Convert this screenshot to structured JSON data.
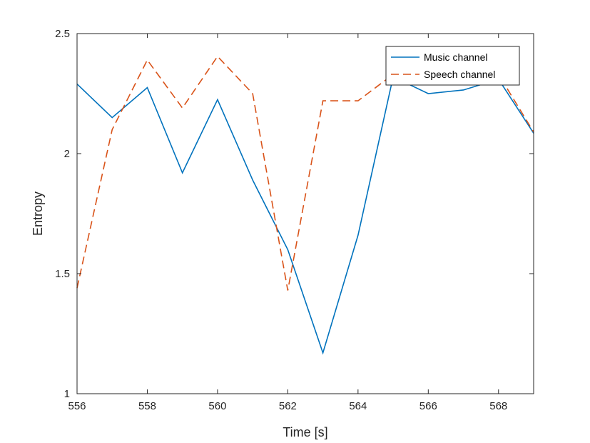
{
  "chart_data": {
    "type": "line",
    "xlabel": "Time [s]",
    "ylabel": "Entropy",
    "xlim": [
      556,
      569
    ],
    "ylim": [
      1,
      2.5
    ],
    "x_ticks": [
      "556",
      "558",
      "560",
      "562",
      "564",
      "566",
      "568"
    ],
    "y_ticks": [
      "1",
      "1.5",
      "2",
      "2.5"
    ],
    "grid": false,
    "legend_position": "top-right",
    "x": [
      556,
      557,
      558,
      559,
      560,
      561,
      562,
      563,
      564,
      565,
      566,
      567,
      568,
      569
    ],
    "series": [
      {
        "name": "Music channel",
        "color": "#0072BD",
        "style": "solid",
        "values": [
          2.29,
          2.15,
          2.275,
          1.92,
          2.225,
          1.89,
          1.6,
          1.17,
          1.66,
          2.32,
          2.25,
          2.265,
          2.31,
          2.085
        ]
      },
      {
        "name": "Speech channel",
        "color": "#D95319",
        "style": "dashed",
        "values": [
          1.44,
          2.1,
          2.39,
          2.19,
          2.405,
          2.25,
          1.43,
          2.22,
          2.22,
          2.33,
          2.31,
          2.32,
          2.33,
          2.09
        ]
      }
    ]
  }
}
